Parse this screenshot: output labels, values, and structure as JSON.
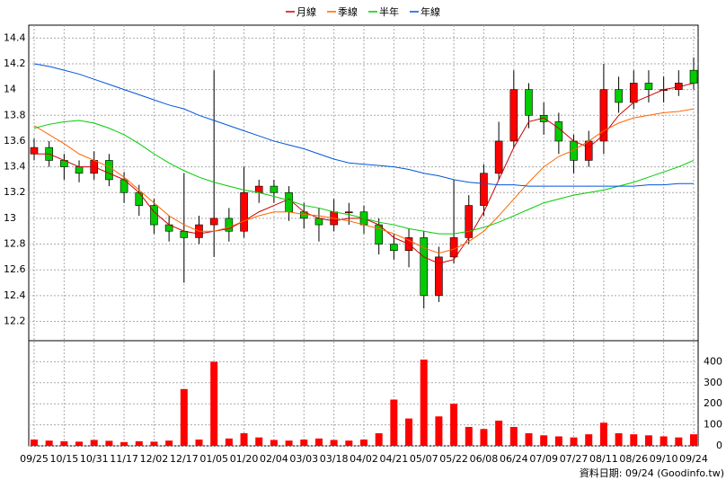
{
  "chart_data": {
    "type": "candlestick",
    "categories": [
      "09/25",
      null,
      "10/15",
      null,
      "10/31",
      null,
      "11/17",
      null,
      "12/02",
      null,
      "12/17",
      null,
      "01/05",
      null,
      "01/20",
      null,
      "02/04",
      null,
      "03/03",
      null,
      "03/18",
      null,
      "04/02",
      null,
      "04/21",
      null,
      "05/07",
      null,
      "05/22",
      null,
      "06/08",
      null,
      "06/24",
      null,
      "07/09",
      null,
      "07/27",
      null,
      "08/11",
      null,
      "08/26",
      null,
      "09/10",
      null,
      "09/24"
    ],
    "open": [
      13.5,
      13.55,
      13.45,
      13.4,
      13.35,
      13.45,
      13.3,
      13.2,
      13.1,
      12.95,
      12.9,
      12.85,
      12.95,
      13.0,
      12.9,
      13.2,
      13.25,
      13.2,
      13.05,
      13.0,
      12.95,
      13.05,
      13.05,
      12.95,
      12.8,
      12.75,
      12.85,
      12.4,
      12.7,
      12.85,
      13.1,
      13.35,
      13.6,
      14.0,
      13.8,
      13.75,
      13.6,
      13.45,
      13.6,
      14.0,
      13.9,
      14.05,
      14.0,
      14.0,
      14.15
    ],
    "high": [
      13.62,
      13.6,
      13.5,
      13.45,
      13.52,
      13.5,
      13.36,
      13.26,
      13.15,
      13.02,
      13.35,
      13.02,
      14.15,
      13.08,
      13.4,
      13.3,
      13.3,
      13.25,
      13.12,
      13.08,
      13.15,
      13.12,
      13.1,
      13.0,
      12.88,
      12.92,
      12.9,
      12.78,
      13.3,
      13.18,
      13.42,
      13.75,
      14.15,
      14.05,
      13.9,
      13.82,
      13.65,
      13.68,
      14.2,
      14.1,
      14.15,
      14.15,
      14.1,
      14.15,
      14.25
    ],
    "low": [
      13.45,
      13.4,
      13.3,
      13.28,
      13.3,
      13.25,
      13.12,
      13.02,
      12.88,
      12.82,
      12.5,
      12.8,
      12.7,
      12.82,
      12.85,
      13.12,
      13.12,
      12.98,
      12.92,
      12.82,
      12.9,
      12.95,
      12.88,
      12.72,
      12.68,
      12.62,
      12.3,
      12.35,
      12.65,
      12.8,
      13.02,
      13.3,
      13.55,
      13.7,
      13.65,
      13.5,
      13.35,
      13.4,
      13.5,
      13.82,
      13.85,
      13.9,
      13.9,
      13.95,
      14.0
    ],
    "close": [
      13.55,
      13.45,
      13.4,
      13.35,
      13.45,
      13.3,
      13.2,
      13.1,
      12.95,
      12.9,
      12.85,
      12.95,
      13.0,
      12.9,
      13.2,
      13.25,
      13.2,
      13.05,
      13.0,
      12.95,
      13.05,
      13.05,
      12.95,
      12.8,
      12.75,
      12.85,
      12.4,
      12.7,
      12.85,
      13.1,
      13.35,
      13.6,
      14.0,
      13.8,
      13.75,
      13.6,
      13.45,
      13.6,
      14.0,
      13.9,
      14.05,
      14.0,
      14.0,
      14.05,
      14.05
    ],
    "up_color": "#ff0000",
    "down_color": "#00cc00",
    "series": [
      {
        "name": "月線",
        "color": "#cc0000",
        "values": [
          13.5,
          13.5,
          13.45,
          13.4,
          13.4,
          13.35,
          13.3,
          13.2,
          13.05,
          12.95,
          12.9,
          12.88,
          12.9,
          12.92,
          12.98,
          13.05,
          13.1,
          13.15,
          13.05,
          13.0,
          12.98,
          13.0,
          13.0,
          12.95,
          12.85,
          12.8,
          12.7,
          12.65,
          12.68,
          12.85,
          13.05,
          13.3,
          13.55,
          13.75,
          13.78,
          13.7,
          13.6,
          13.55,
          13.65,
          13.8,
          13.9,
          13.95,
          14.0,
          14.02,
          14.05
        ]
      },
      {
        "name": "季線",
        "color": "#ff6600",
        "values": [
          13.72,
          13.65,
          13.58,
          13.5,
          13.45,
          13.4,
          13.32,
          13.22,
          13.12,
          13.02,
          12.95,
          12.9,
          12.9,
          12.93,
          12.98,
          13.02,
          13.05,
          13.05,
          13.03,
          13.02,
          13.0,
          12.98,
          12.95,
          12.92,
          12.88,
          12.83,
          12.77,
          12.73,
          12.76,
          12.82,
          12.9,
          13.02,
          13.15,
          13.28,
          13.4,
          13.48,
          13.53,
          13.6,
          13.68,
          13.74,
          13.78,
          13.8,
          13.82,
          13.83,
          13.85
        ]
      },
      {
        "name": "半年",
        "color": "#00cc00",
        "values": [
          13.7,
          13.73,
          13.75,
          13.76,
          13.74,
          13.7,
          13.65,
          13.58,
          13.5,
          13.43,
          13.37,
          13.32,
          13.28,
          13.25,
          13.22,
          13.2,
          13.17,
          13.14,
          13.1,
          13.08,
          13.05,
          13.03,
          13.0,
          12.97,
          12.95,
          12.92,
          12.9,
          12.88,
          12.88,
          12.9,
          12.93,
          12.97,
          13.02,
          13.07,
          13.12,
          13.15,
          13.18,
          13.2,
          13.22,
          13.25,
          13.28,
          13.32,
          13.36,
          13.4,
          13.45
        ]
      },
      {
        "name": "年線",
        "color": "#0055dd",
        "values": [
          14.2,
          14.18,
          14.15,
          14.12,
          14.08,
          14.04,
          14.0,
          13.96,
          13.92,
          13.88,
          13.85,
          13.8,
          13.76,
          13.72,
          13.68,
          13.64,
          13.6,
          13.57,
          13.54,
          13.5,
          13.46,
          13.43,
          13.42,
          13.41,
          13.4,
          13.38,
          13.35,
          13.33,
          13.3,
          13.28,
          13.27,
          13.26,
          13.26,
          13.25,
          13.25,
          13.25,
          13.25,
          13.25,
          13.25,
          13.25,
          13.25,
          13.26,
          13.26,
          13.27,
          13.27
        ]
      }
    ],
    "ylim": [
      12.05,
      14.5
    ],
    "yticks": [
      12.2,
      12.4,
      12.6,
      12.8,
      13,
      13.2,
      13.4,
      13.6,
      13.8,
      14,
      14.2,
      14.4
    ],
    "volume": [
      30,
      25,
      22,
      20,
      28,
      24,
      18,
      22,
      20,
      25,
      270,
      30,
      400,
      35,
      60,
      40,
      28,
      25,
      30,
      35,
      28,
      25,
      30,
      60,
      220,
      130,
      410,
      140,
      200,
      90,
      80,
      120,
      90,
      60,
      50,
      45,
      40,
      55,
      110,
      60,
      55,
      50,
      45,
      40,
      55
    ],
    "volume_color": "#ff0000",
    "volume_ylim": [
      0,
      500
    ],
    "volume_yticks": [
      0,
      100,
      200,
      300,
      400
    ],
    "grid": true,
    "source": "資料日期: 09/24 (Goodinfo.tw)"
  }
}
